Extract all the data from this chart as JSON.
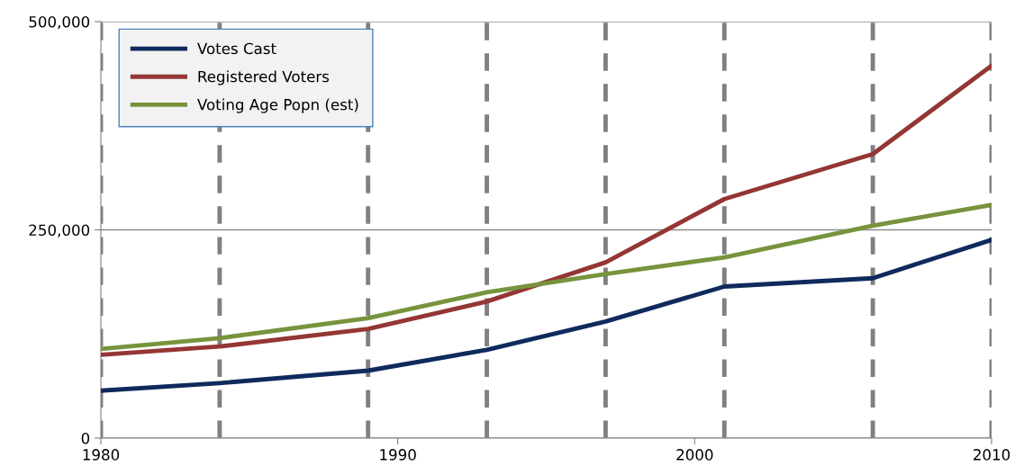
{
  "chart_data": {
    "type": "line",
    "xlim": [
      1980,
      2010
    ],
    "xticks": [
      1980,
      1990,
      2000,
      2010
    ],
    "ylim": [
      0,
      500000
    ],
    "yticks": [
      {
        "value": 0,
        "label": "0"
      },
      {
        "value": 250000,
        "label": "250,000"
      },
      {
        "value": 500000,
        "label": "500,000"
      }
    ],
    "grid": "y",
    "legend": "top left",
    "series": [
      {
        "name": "Votes Cast",
        "color": "#0f2a5c",
        "x": [
          1980,
          1984,
          1989,
          1993,
          1997,
          2001,
          2006,
          2010
        ],
        "values": [
          57000,
          66000,
          81000,
          106000,
          140000,
          182000,
          192000,
          238000
        ]
      },
      {
        "name": "Registered Voters",
        "color": "#943634",
        "x": [
          1980,
          1984,
          1989,
          1993,
          1997,
          2001,
          2006,
          2010
        ],
        "values": [
          100000,
          110000,
          131000,
          164000,
          211000,
          287000,
          341000,
          447000
        ]
      },
      {
        "name": "Voting Age Popn (est)",
        "color": "#77933c",
        "x": [
          1980,
          1984,
          1989,
          1993,
          1997,
          2001,
          2006,
          2010
        ],
        "values": [
          107000,
          120000,
          144000,
          175000,
          197000,
          217000,
          255000,
          280000
        ]
      }
    ],
    "ref_lines": [
      {
        "axis": "x",
        "value": 1980,
        "color": "#808080",
        "line_style": "dashed"
      },
      {
        "axis": "x",
        "value": 1984,
        "color": "#808080",
        "line_style": "dashed"
      },
      {
        "axis": "x",
        "value": 1989,
        "color": "#808080",
        "line_style": "dashed"
      },
      {
        "axis": "x",
        "value": 1993,
        "color": "#808080",
        "line_style": "dashed"
      },
      {
        "axis": "x",
        "value": 1997,
        "color": "#808080",
        "line_style": "dashed"
      },
      {
        "axis": "x",
        "value": 2001,
        "color": "#808080",
        "line_style": "dashed"
      },
      {
        "axis": "x",
        "value": 2006,
        "color": "#808080",
        "line_style": "dashed"
      },
      {
        "axis": "x",
        "value": 2010,
        "color": "#808080",
        "line_style": "dashed"
      }
    ]
  }
}
